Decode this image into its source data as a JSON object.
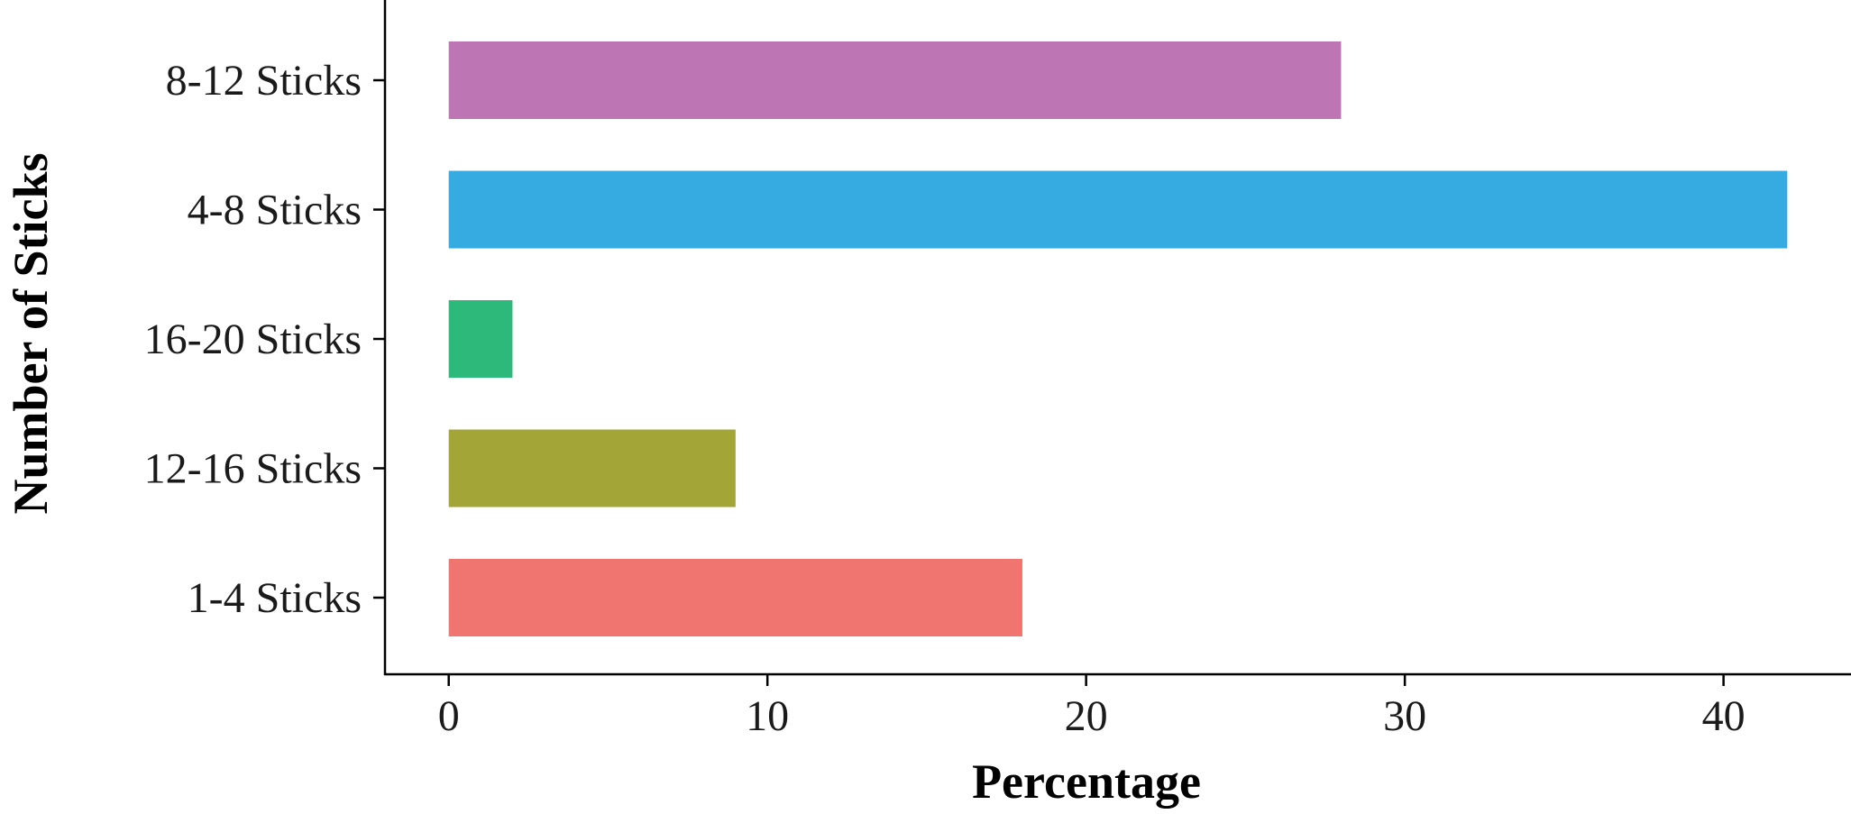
{
  "chart_data": {
    "type": "bar",
    "orientation": "horizontal",
    "categories": [
      "1-4 Sticks",
      "12-16 Sticks",
      "16-20 Sticks",
      "4-8 Sticks",
      "8-12 Sticks"
    ],
    "values": [
      18,
      9,
      2,
      42,
      28
    ],
    "colors": [
      "#F07470",
      "#A3A537",
      "#2CB97A",
      "#36ABE2",
      "#BD75B3"
    ],
    "xlabel": "Percentage",
    "ylabel": "Number of Sticks",
    "xlim": [
      -2,
      44
    ],
    "xticks": [
      0,
      10,
      20,
      30,
      40
    ],
    "grid": false,
    "legend": "none"
  }
}
